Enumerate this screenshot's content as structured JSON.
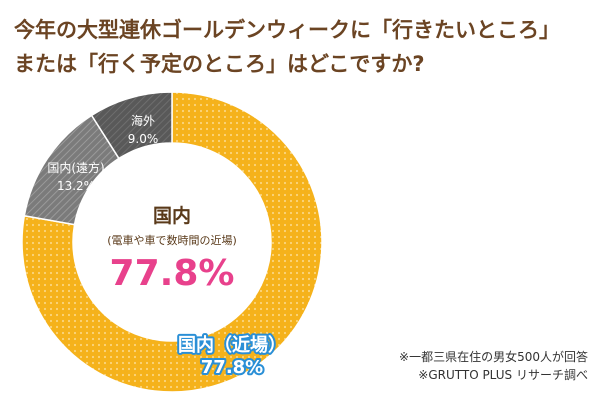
{
  "title": {
    "line1": "今年の大型連休ゴールデンウィークに「行きたいところ」",
    "line2": "または「行く予定のところ」はどこですか?"
  },
  "chart_data": {
    "type": "pie",
    "donut": true,
    "categories": [
      "国内（近場）",
      "国内(遠方)",
      "海外"
    ],
    "values": [
      77.8,
      13.2,
      9.0
    ],
    "value_labels": [
      "77.8%",
      "13.2%",
      "9.0%"
    ],
    "colors": [
      "#f5b21b",
      "#7b7b7b",
      "#595959"
    ],
    "center": {
      "title": "国内",
      "subtitle": "(電車や車で数時間の近場)",
      "value": "77.8%",
      "value_color": "#e8418c"
    }
  },
  "notes": {
    "line1": "※一都三県在住の男女500人が回答",
    "line2": "※GRUTTO PLUS リサーチ調べ"
  }
}
